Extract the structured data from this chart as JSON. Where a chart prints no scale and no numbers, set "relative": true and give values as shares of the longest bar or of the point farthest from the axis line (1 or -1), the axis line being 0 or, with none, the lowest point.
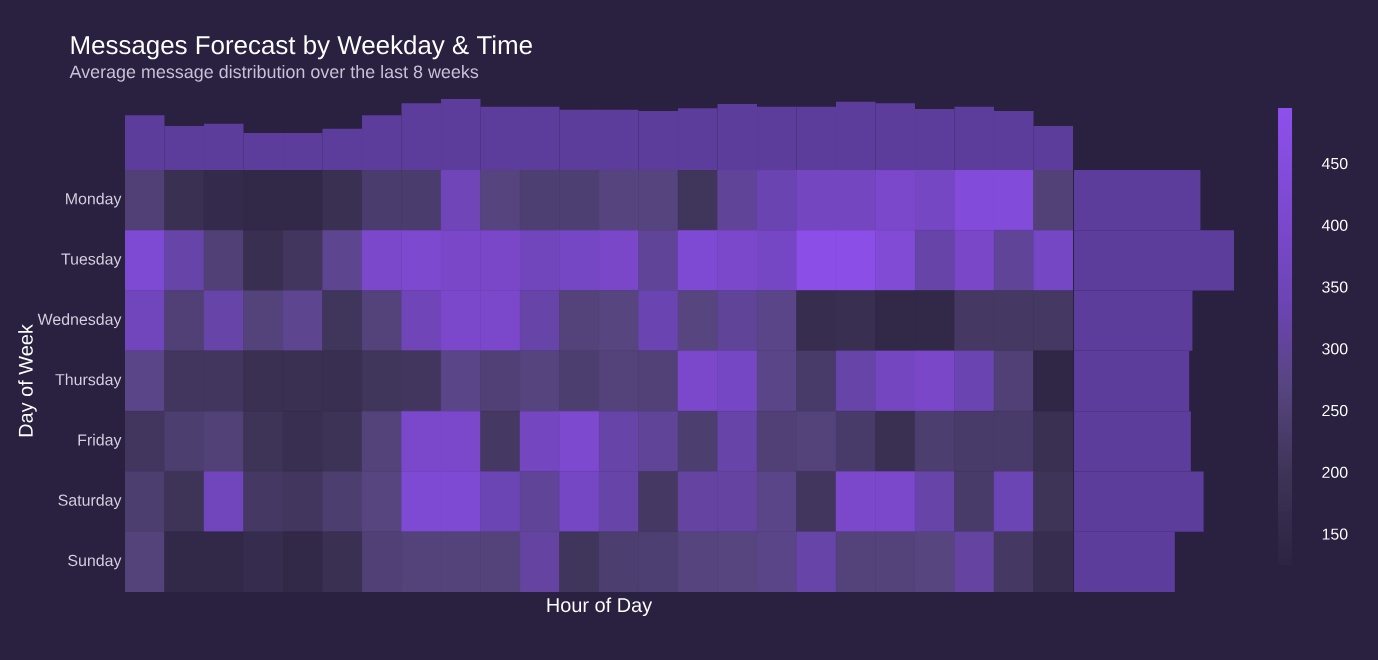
{
  "chart_data": [
    {
      "type": "bar",
      "relative": true,
      "color": "#5c3d9c",
      "title": "Messages Forecast by Weekday & Time",
      "subtitle": "Average message distribution over the last 8 weeks",
      "categories": [
        null,
        null,
        null,
        null,
        null,
        null,
        null,
        null,
        null,
        null,
        null,
        null,
        null,
        null,
        null,
        null,
        null,
        null,
        null,
        null,
        null,
        null,
        null,
        null
      ],
      "values": [
        0.77,
        0.62,
        0.65,
        0.52,
        0.52,
        0.58,
        0.77,
        0.94,
        1,
        0.89,
        0.89,
        0.85,
        0.85,
        0.83,
        0.87,
        0.93,
        0.89,
        0.89,
        0.96,
        0.94,
        0.86,
        0.89,
        0.83,
        0.62
      ]
    },
    {
      "type": "heatmap",
      "xlabel": "Hour of Day",
      "ylabel": "Day of Week",
      "categories": [
        null,
        null,
        null,
        null,
        null,
        null,
        null,
        null,
        null,
        null,
        null,
        null,
        null,
        null,
        null,
        null,
        null,
        null,
        null,
        null,
        null,
        null,
        null,
        null
      ],
      "y_categories": [
        "Monday",
        "Tuesday",
        "Wednesday",
        "Thursday",
        "Friday",
        "Saturday",
        "Sunday"
      ],
      "cells": [
        [
          250,
          180,
          160,
          150,
          150,
          180,
          235,
          235,
          350,
          265,
          245,
          245,
          265,
          265,
          205,
          300,
          330,
          370,
          370,
          400,
          375,
          440,
          440,
          255
        ],
        [
          420,
          320,
          250,
          175,
          210,
          290,
          400,
          410,
          390,
          390,
          360,
          380,
          390,
          300,
          420,
          400,
          380,
          480,
          480,
          430,
          320,
          390,
          300,
          380
        ],
        [
          360,
          250,
          320,
          260,
          290,
          205,
          260,
          350,
          400,
          400,
          320,
          260,
          270,
          330,
          270,
          300,
          280,
          170,
          175,
          150,
          150,
          220,
          220,
          220
        ],
        [
          280,
          210,
          210,
          180,
          180,
          175,
          205,
          210,
          280,
          250,
          265,
          240,
          260,
          255,
          400,
          380,
          280,
          230,
          320,
          370,
          390,
          330,
          250,
          140
        ],
        [
          210,
          240,
          255,
          200,
          175,
          195,
          260,
          400,
          400,
          220,
          370,
          410,
          320,
          300,
          240,
          320,
          250,
          260,
          230,
          180,
          240,
          230,
          230,
          180
        ],
        [
          240,
          200,
          360,
          220,
          210,
          240,
          270,
          420,
          420,
          340,
          300,
          380,
          320,
          220,
          310,
          310,
          280,
          210,
          400,
          400,
          320,
          230,
          340,
          200
        ],
        [
          260,
          150,
          150,
          165,
          150,
          180,
          250,
          260,
          260,
          260,
          310,
          205,
          240,
          245,
          265,
          270,
          280,
          320,
          260,
          260,
          270,
          310,
          220,
          170
        ]
      ],
      "clim": [
        125,
        495
      ],
      "cticks": [
        150,
        200,
        250,
        300,
        350,
        400,
        450
      ]
    },
    {
      "type": "bar",
      "orientation": "horizontal",
      "relative": true,
      "color": "#5c3d9c",
      "categories": [
        null,
        null,
        null,
        null,
        null,
        null,
        null
      ],
      "values": [
        0.79,
        1,
        0.74,
        0.72,
        0.73,
        0.81,
        0.63
      ]
    }
  ]
}
